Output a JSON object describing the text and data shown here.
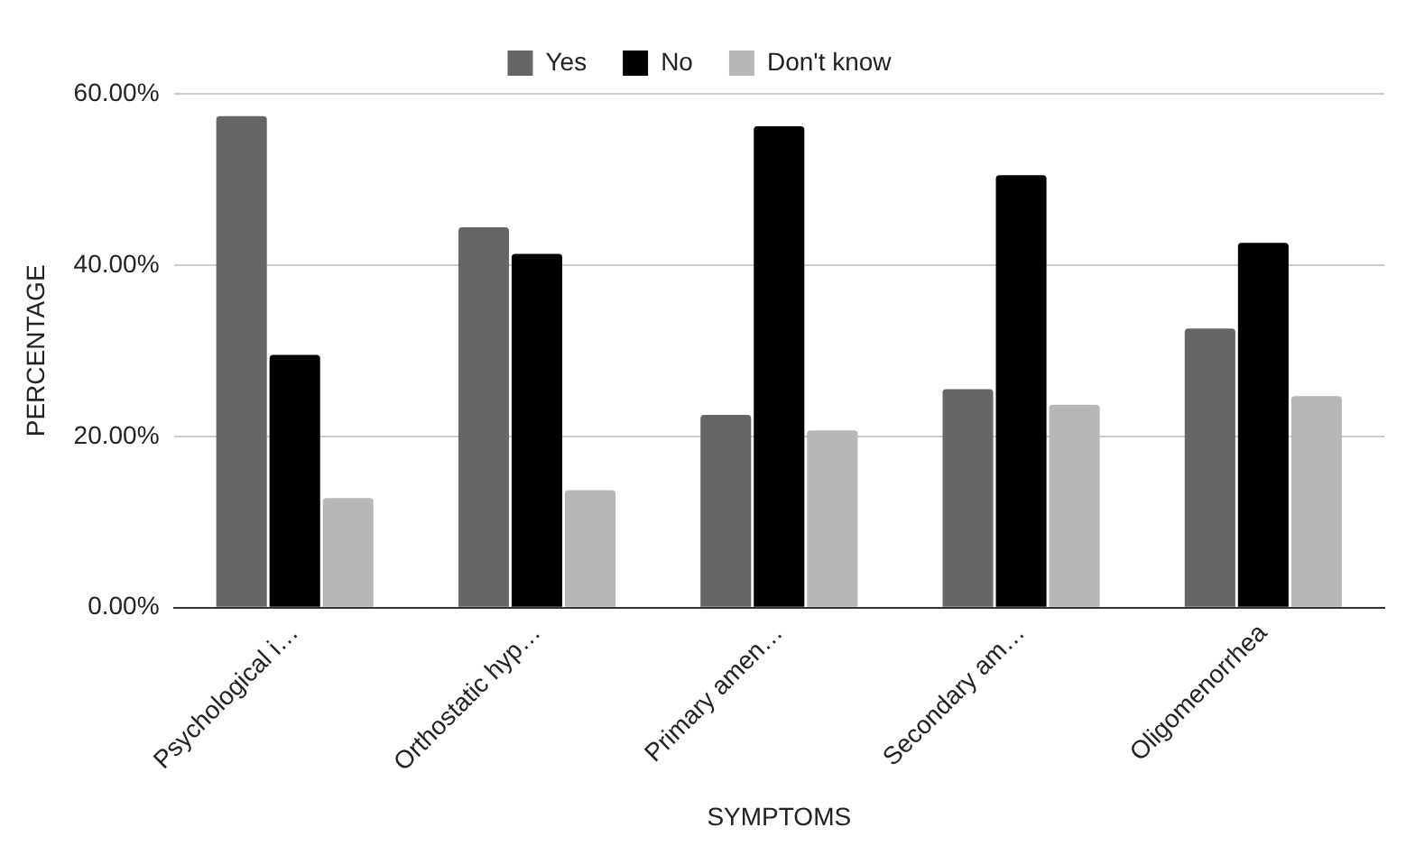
{
  "chart_data": {
    "type": "bar",
    "xlabel": "SYMPTOMS",
    "ylabel": "PERCENTAGE",
    "categories": [
      "Psychological i…",
      "Orthostatic hyp…",
      "Primary amen…",
      "Secondary am…",
      "Oligomenorrhea"
    ],
    "series": [
      {
        "name": "Yes",
        "color": "#666666",
        "values": [
          57.4,
          44.4,
          22.5,
          25.5,
          32.6
        ]
      },
      {
        "name": "No",
        "color": "#000000",
        "values": [
          29.5,
          41.3,
          56.2,
          50.5,
          42.6
        ]
      },
      {
        "name": "Don't know",
        "color": "#b7b7b7",
        "values": [
          12.8,
          13.7,
          20.7,
          23.7,
          24.7
        ]
      }
    ],
    "ylim": [
      0,
      60
    ],
    "yticks": [
      {
        "value": 0,
        "label": "0.00%"
      },
      {
        "value": 20,
        "label": "20.00%"
      },
      {
        "value": 40,
        "label": "40.00%"
      },
      {
        "value": 60,
        "label": "60.00%"
      }
    ],
    "grid": "y",
    "legend": "top"
  }
}
